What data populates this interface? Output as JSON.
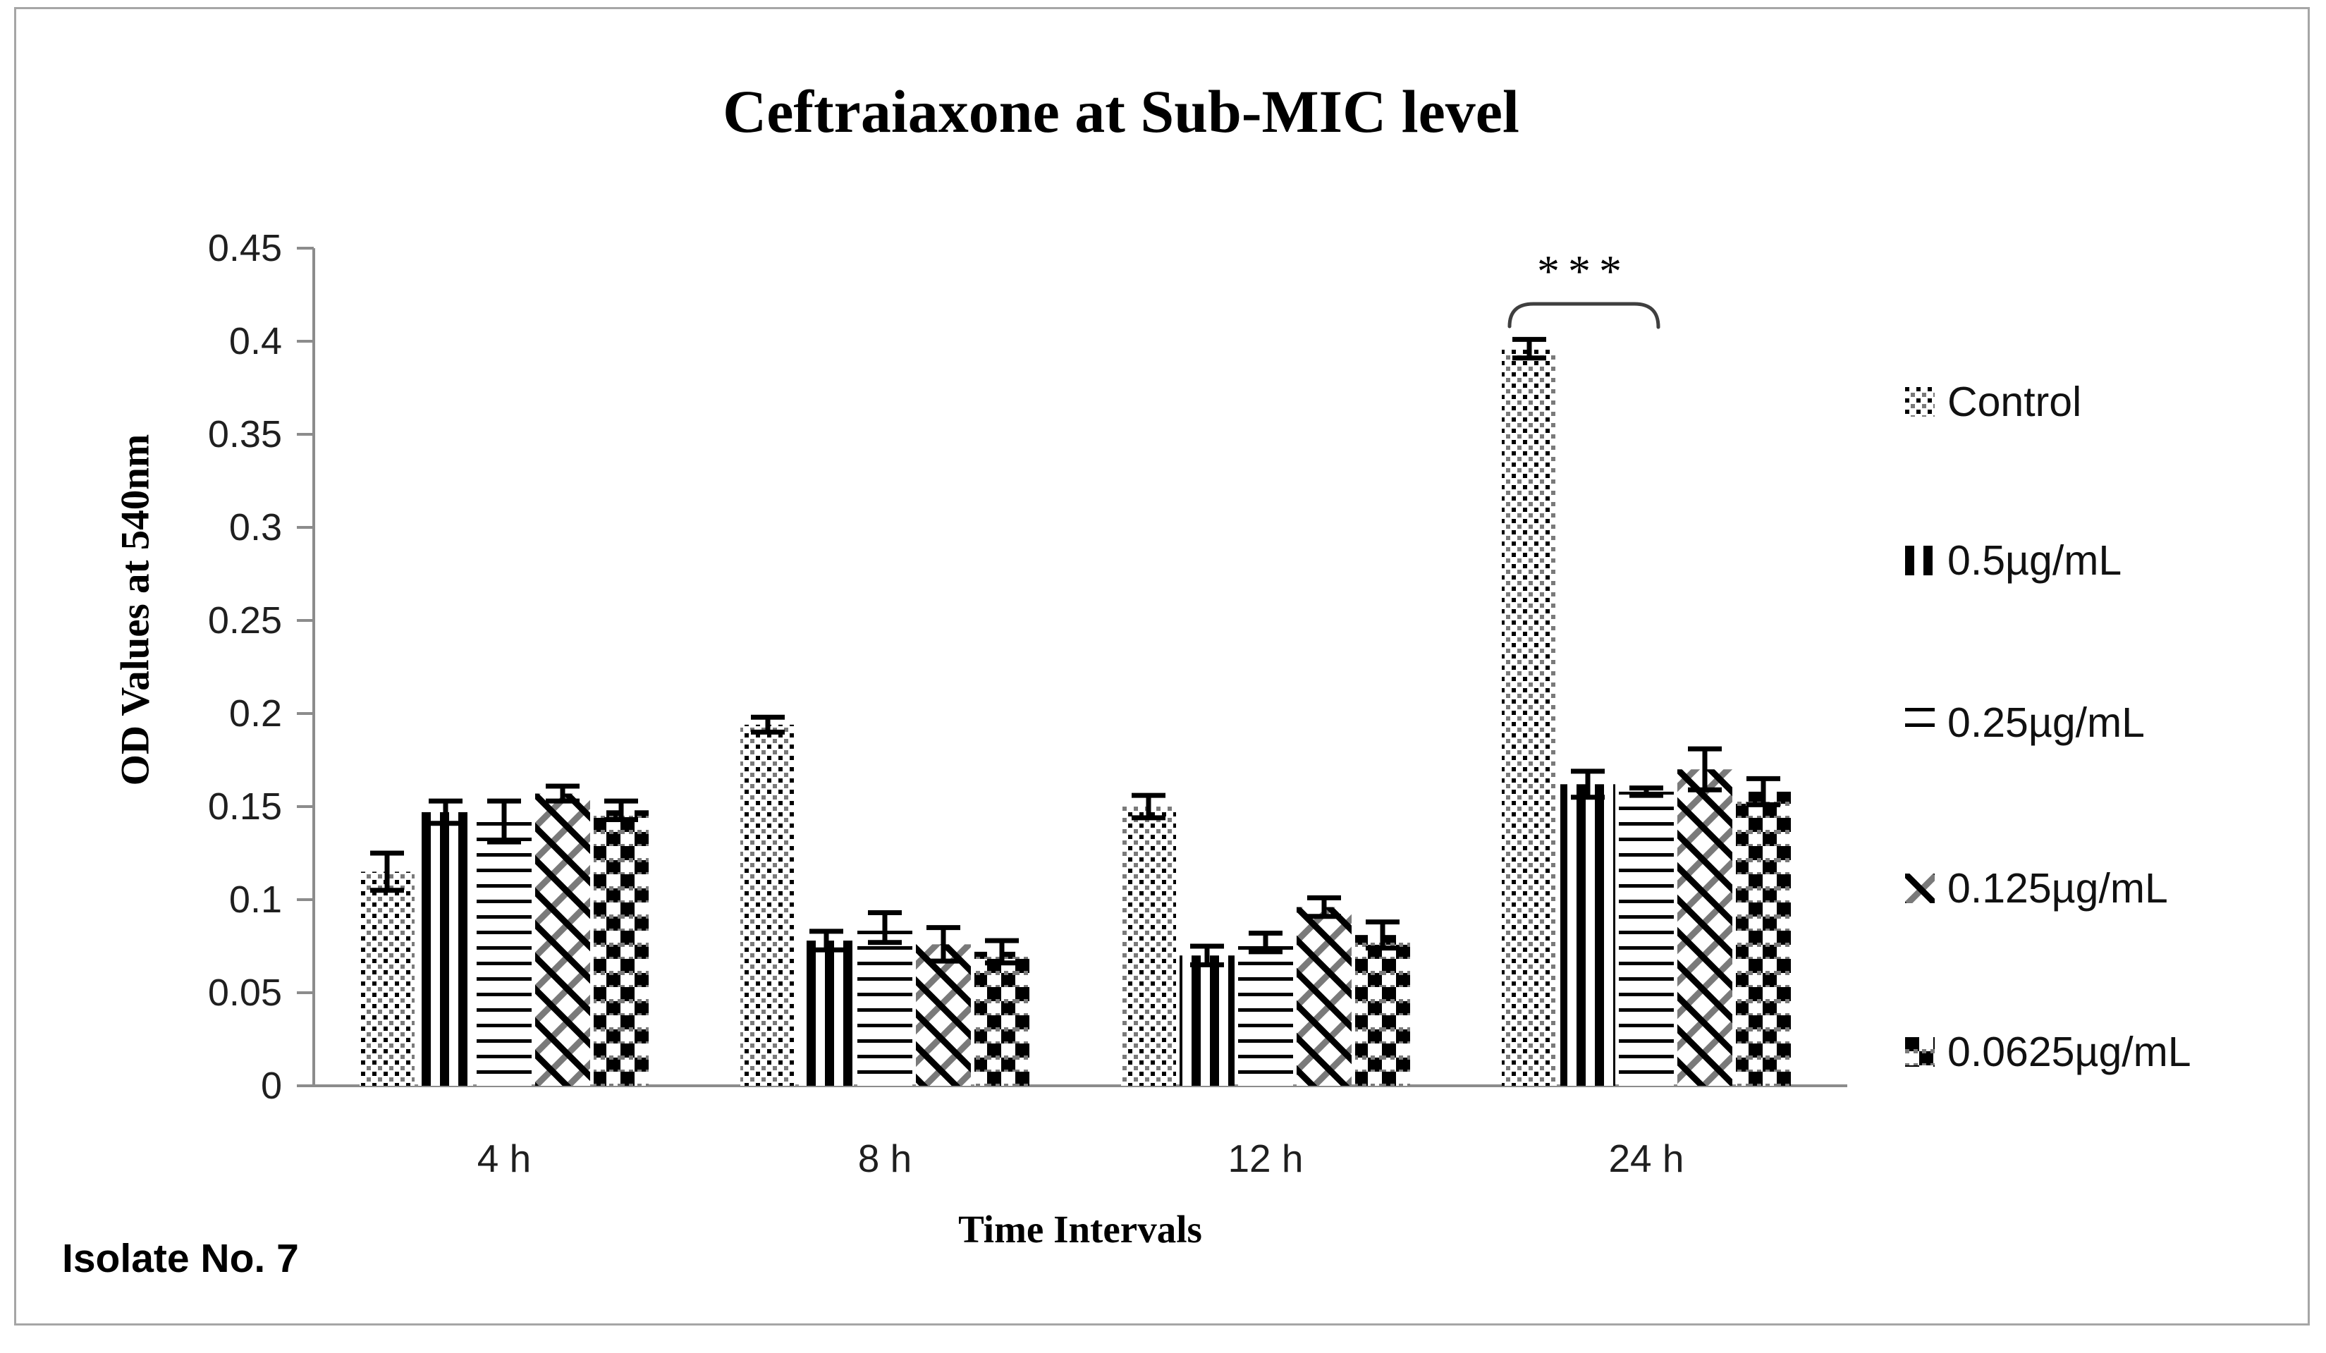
{
  "figure": {
    "title": "Ceftraiaxone at Sub-MIC level",
    "footnote": "Isolate No. 7"
  },
  "chart_data": {
    "type": "bar",
    "title": "Ceftraiaxone at Sub-MIC level",
    "xlabel": "Time Intervals",
    "ylabel": "OD Values at 540nm",
    "categories": [
      "4 h",
      "8 h",
      "12 h",
      "24 h"
    ],
    "series": [
      {
        "name": "Control",
        "pattern": "dotted-grid",
        "values": [
          0.115,
          0.194,
          0.15,
          0.396
        ],
        "errors": [
          0.01,
          0.004,
          0.006,
          0.005
        ]
      },
      {
        "name": "0.5µg/mL",
        "pattern": "vertical-stripes",
        "values": [
          0.147,
          0.078,
          0.07,
          0.162
        ],
        "errors": [
          0.006,
          0.005,
          0.005,
          0.007
        ]
      },
      {
        "name": "0.25µg/mL",
        "pattern": "horizontal-lines",
        "values": [
          0.142,
          0.085,
          0.077,
          0.158
        ],
        "errors": [
          0.011,
          0.008,
          0.005,
          0.002
        ]
      },
      {
        "name": "0.125µg/mL",
        "pattern": "diagonal-crosshatch",
        "values": [
          0.157,
          0.076,
          0.096,
          0.17
        ],
        "errors": [
          0.004,
          0.009,
          0.005,
          0.011
        ]
      },
      {
        "name": "0.0625µg/mL",
        "pattern": "checkerboard",
        "values": [
          0.148,
          0.072,
          0.081,
          0.158
        ],
        "errors": [
          0.005,
          0.006,
          0.007,
          0.007
        ]
      }
    ],
    "ylim": [
      0,
      0.45
    ],
    "yticks": [
      "0",
      "0.05",
      "0.1",
      "0.15",
      "0.2",
      "0.25",
      "0.3",
      "0.35",
      "0.4",
      "0.45"
    ],
    "grid": false,
    "legend_position": "right",
    "annotation": {
      "text": "***",
      "target": "24 h",
      "description": "significance bracket over 24 h group, control vs treatments"
    }
  },
  "colors": {
    "ink": "#000000",
    "axis": "#8c8c8c",
    "pattern_gray": "#7a7a7a",
    "bracket": "#3f3f3f",
    "background": "#ffffff",
    "border": "#a6a6a6"
  }
}
